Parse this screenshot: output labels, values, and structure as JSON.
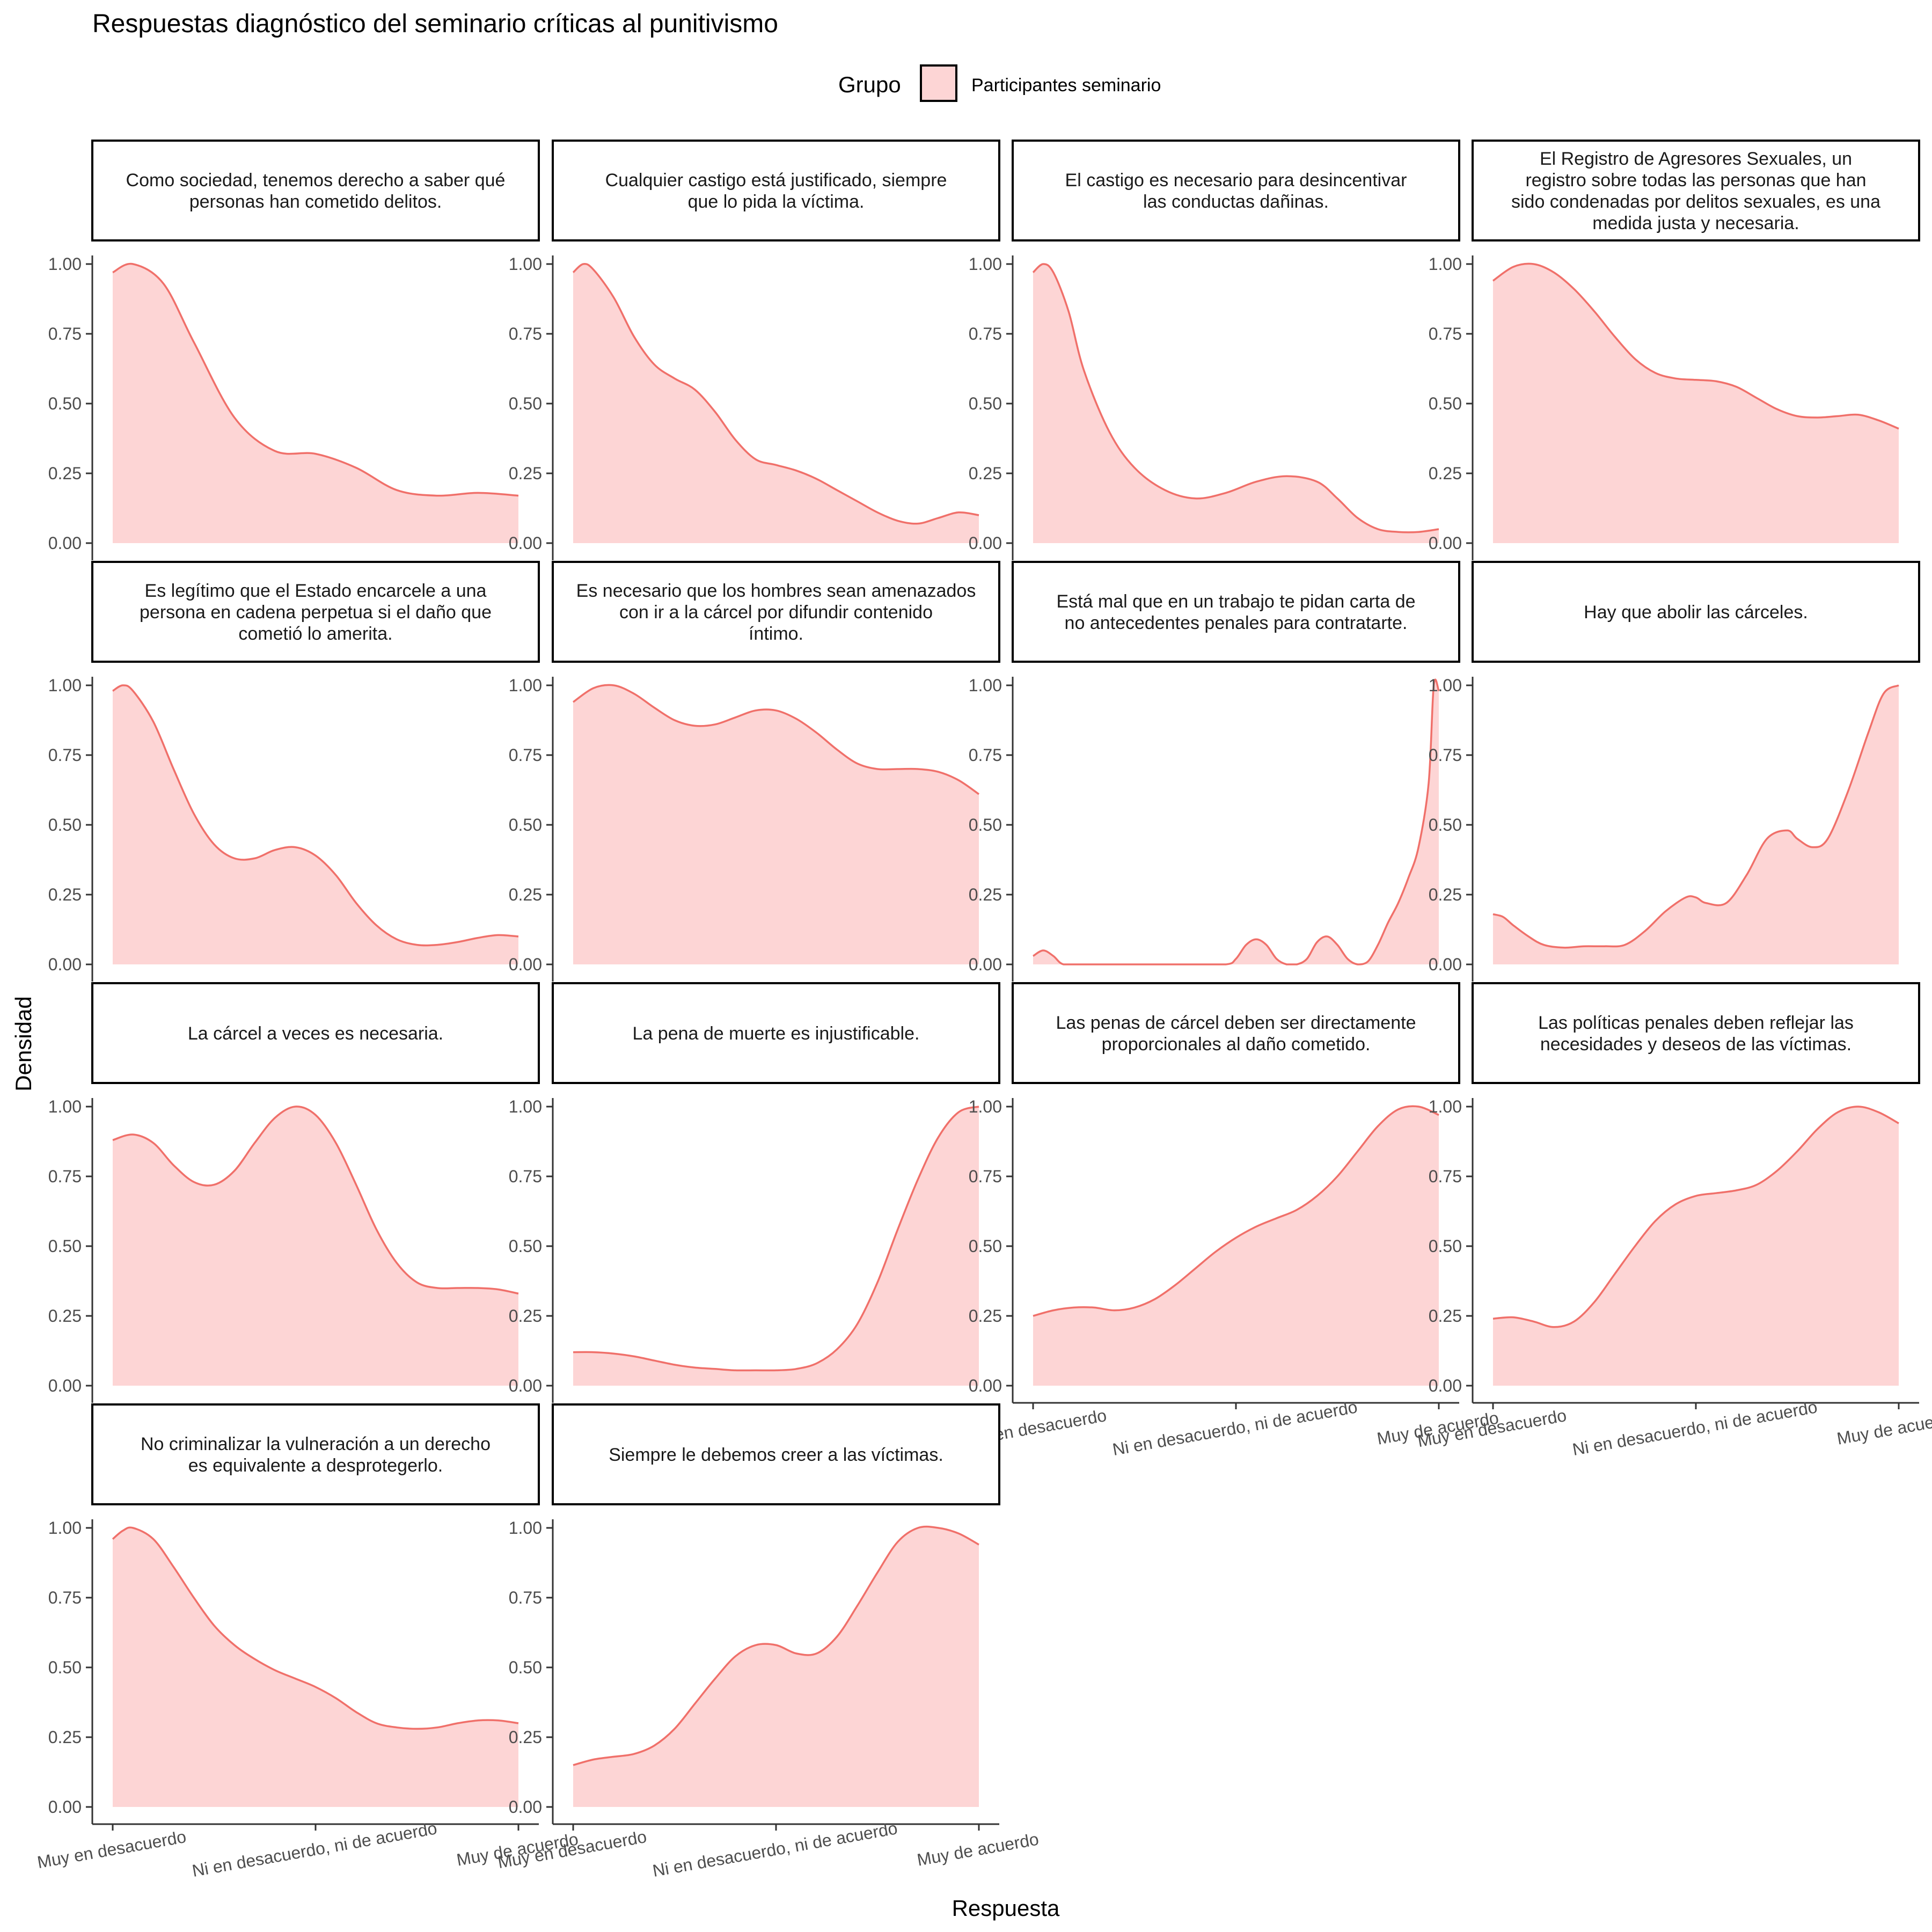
{
  "chart_data": {
    "type": "area",
    "title": "Respuestas diagnóstico del seminario críticas al punitivismo",
    "xlabel": "Respuesta",
    "ylabel": "Densidad",
    "legend": {
      "title": "Grupo",
      "position": "top",
      "entries": [
        {
          "name": "Participantes seminario",
          "fill": "#FDD5D5",
          "stroke": "#F0706A"
        }
      ]
    },
    "colors": {
      "fill": "#FDD5D5",
      "stroke": "#F0706A",
      "axis": "#333333",
      "tick_text": "#4D4D4D"
    },
    "ylim": [
      0,
      1
    ],
    "xlim": [
      1,
      5
    ],
    "y_ticks": [
      {
        "value": 0,
        "label": "0.00"
      },
      {
        "value": 0.25,
        "label": "0.25"
      },
      {
        "value": 0.5,
        "label": "0.50"
      },
      {
        "value": 0.75,
        "label": "0.75"
      },
      {
        "value": 1,
        "label": "1.00"
      }
    ],
    "x_ticks": [
      {
        "value": 1,
        "label": "Muy en desacuerdo"
      },
      {
        "value": 3,
        "label": "Ni en desacuerdo, ni de acuerdo"
      },
      {
        "value": 5,
        "label": "Muy de acuerdo"
      }
    ],
    "facets": [
      {
        "title": [
          "Como sociedad, tenemos derecho a saber qué",
          "personas han cometido delitos."
        ],
        "x": [
          1,
          1.2,
          1.5,
          1.8,
          2.2,
          2.6,
          3,
          3.4,
          3.8,
          4.2,
          4.6,
          5
        ],
        "y": [
          0.97,
          1.0,
          0.93,
          0.72,
          0.45,
          0.33,
          0.32,
          0.27,
          0.19,
          0.17,
          0.18,
          0.17
        ]
      },
      {
        "title": [
          "Cualquier castigo está justificado, siempre",
          "que lo pida la víctima."
        ],
        "x": [
          1,
          1.1,
          1.2,
          1.4,
          1.6,
          1.8,
          2.0,
          2.2,
          2.4,
          2.6,
          2.8,
          3.0,
          3.2,
          3.4,
          3.6,
          3.8,
          4.0,
          4.2,
          4.4,
          4.6,
          4.8,
          5
        ],
        "y": [
          0.97,
          1.0,
          0.98,
          0.88,
          0.74,
          0.64,
          0.59,
          0.55,
          0.47,
          0.37,
          0.3,
          0.28,
          0.26,
          0.23,
          0.19,
          0.15,
          0.11,
          0.08,
          0.07,
          0.09,
          0.11,
          0.1
        ]
      },
      {
        "title": [
          "El castigo es necesario para desincentivar",
          "las conductas dañinas."
        ],
        "x": [
          1,
          1.1,
          1.2,
          1.35,
          1.5,
          1.75,
          2,
          2.3,
          2.6,
          2.9,
          3.2,
          3.5,
          3.8,
          4.0,
          4.2,
          4.4,
          4.6,
          4.8,
          5
        ],
        "y": [
          0.97,
          1.0,
          0.97,
          0.83,
          0.62,
          0.4,
          0.27,
          0.19,
          0.16,
          0.18,
          0.22,
          0.24,
          0.22,
          0.16,
          0.09,
          0.05,
          0.04,
          0.04,
          0.05
        ]
      },
      {
        "title": [
          "El Registro de Agresores Sexuales, un",
          "registro sobre todas las personas que han",
          "sido condenadas por delitos sexuales, es una",
          "medida justa y necesaria."
        ],
        "x": [
          1,
          1.2,
          1.4,
          1.6,
          1.8,
          2.0,
          2.2,
          2.4,
          2.6,
          2.8,
          3.0,
          3.2,
          3.4,
          3.6,
          3.8,
          4.0,
          4.2,
          4.4,
          4.6,
          4.8,
          5
        ],
        "y": [
          0.94,
          0.99,
          1.0,
          0.97,
          0.91,
          0.83,
          0.74,
          0.66,
          0.61,
          0.59,
          0.585,
          0.58,
          0.56,
          0.52,
          0.48,
          0.455,
          0.45,
          0.455,
          0.46,
          0.44,
          0.41
        ]
      },
      {
        "title": [
          "Es legítimo que el Estado encarcele a una",
          "persona en cadena perpetua si el daño que",
          "cometió lo amerita."
        ],
        "x": [
          1,
          1.1,
          1.2,
          1.4,
          1.6,
          1.8,
          2.0,
          2.2,
          2.4,
          2.6,
          2.8,
          3.0,
          3.2,
          3.4,
          3.6,
          3.8,
          4.0,
          4.2,
          4.4,
          4.6,
          4.8,
          5
        ],
        "y": [
          0.98,
          1.0,
          0.98,
          0.87,
          0.7,
          0.54,
          0.43,
          0.38,
          0.38,
          0.41,
          0.42,
          0.39,
          0.32,
          0.22,
          0.14,
          0.09,
          0.07,
          0.07,
          0.08,
          0.095,
          0.105,
          0.1
        ]
      },
      {
        "title": [
          "Es necesario que los hombres sean amenazados",
          "con ir a la cárcel por difundir contenido",
          "íntimo."
        ],
        "x": [
          1,
          1.2,
          1.4,
          1.6,
          1.8,
          2.0,
          2.2,
          2.4,
          2.6,
          2.8,
          3.0,
          3.2,
          3.4,
          3.6,
          3.8,
          4.0,
          4.2,
          4.4,
          4.6,
          4.8,
          5
        ],
        "y": [
          0.94,
          0.99,
          1.0,
          0.97,
          0.92,
          0.875,
          0.855,
          0.86,
          0.885,
          0.91,
          0.91,
          0.88,
          0.83,
          0.77,
          0.72,
          0.7,
          0.7,
          0.7,
          0.69,
          0.66,
          0.61
        ]
      },
      {
        "title": [
          "Está mal que en un trabajo te pidan carta de",
          "no antecedentes penales para contratarte."
        ],
        "x": [
          1,
          1.1,
          1.2,
          1.3,
          1.5,
          2.0,
          2.5,
          2.9,
          3.0,
          3.1,
          3.2,
          3.3,
          3.4,
          3.5,
          3.6,
          3.7,
          3.8,
          3.9,
          4.0,
          4.1,
          4.2,
          4.3,
          4.4,
          4.5,
          4.6,
          4.7,
          4.8,
          4.9,
          4.95,
          5
        ],
        "y": [
          0.03,
          0.05,
          0.03,
          0.0,
          0.0,
          0.0,
          0.0,
          0.0,
          0.02,
          0.07,
          0.09,
          0.07,
          0.02,
          0.0,
          0.0,
          0.02,
          0.08,
          0.1,
          0.07,
          0.02,
          0.0,
          0.01,
          0.07,
          0.15,
          0.22,
          0.31,
          0.42,
          0.65,
          1.0,
          0.98
        ]
      },
      {
        "title": [
          "Hay que abolir las cárceles."
        ],
        "x": [
          1,
          1.1,
          1.2,
          1.35,
          1.5,
          1.7,
          1.9,
          2.1,
          2.3,
          2.5,
          2.7,
          2.9,
          3.0,
          3.1,
          3.3,
          3.5,
          3.7,
          3.9,
          4.0,
          4.15,
          4.3,
          4.5,
          4.7,
          4.85,
          5
        ],
        "y": [
          0.18,
          0.17,
          0.14,
          0.1,
          0.07,
          0.06,
          0.065,
          0.065,
          0.07,
          0.12,
          0.19,
          0.24,
          0.24,
          0.22,
          0.22,
          0.32,
          0.45,
          0.48,
          0.45,
          0.42,
          0.45,
          0.62,
          0.83,
          0.97,
          1.0
        ]
      },
      {
        "title": [
          "La cárcel a veces es necesaria."
        ],
        "x": [
          1,
          1.2,
          1.4,
          1.6,
          1.8,
          2.0,
          2.2,
          2.4,
          2.6,
          2.8,
          3.0,
          3.2,
          3.4,
          3.6,
          3.8,
          4.0,
          4.2,
          4.4,
          4.6,
          4.8,
          5
        ],
        "y": [
          0.88,
          0.9,
          0.87,
          0.79,
          0.73,
          0.72,
          0.77,
          0.87,
          0.96,
          1.0,
          0.97,
          0.87,
          0.72,
          0.56,
          0.44,
          0.37,
          0.35,
          0.35,
          0.35,
          0.345,
          0.33
        ]
      },
      {
        "title": [
          "La pena de muerte es injustificable."
        ],
        "x": [
          1,
          1.2,
          1.4,
          1.6,
          1.8,
          2.0,
          2.2,
          2.4,
          2.6,
          2.8,
          3.0,
          3.2,
          3.4,
          3.6,
          3.8,
          4.0,
          4.2,
          4.4,
          4.6,
          4.8,
          5
        ],
        "y": [
          0.12,
          0.12,
          0.115,
          0.105,
          0.09,
          0.075,
          0.065,
          0.06,
          0.055,
          0.055,
          0.055,
          0.06,
          0.08,
          0.13,
          0.22,
          0.37,
          0.56,
          0.74,
          0.89,
          0.98,
          1.0
        ]
      },
      {
        "title": [
          "Las penas de cárcel deben ser directamente",
          "proporcionales al daño cometido."
        ],
        "x": [
          1,
          1.2,
          1.4,
          1.6,
          1.8,
          2.0,
          2.2,
          2.4,
          2.6,
          2.8,
          3.0,
          3.2,
          3.4,
          3.6,
          3.8,
          4.0,
          4.2,
          4.4,
          4.6,
          4.8,
          5
        ],
        "y": [
          0.25,
          0.27,
          0.28,
          0.28,
          0.27,
          0.28,
          0.31,
          0.36,
          0.42,
          0.48,
          0.53,
          0.57,
          0.6,
          0.63,
          0.68,
          0.75,
          0.84,
          0.93,
          0.99,
          1.0,
          0.97
        ]
      },
      {
        "title": [
          "Las políticas penales deben reflejar las",
          "necesidades y deseos de las víctimas."
        ],
        "x": [
          1,
          1.2,
          1.4,
          1.6,
          1.8,
          2.0,
          2.2,
          2.4,
          2.6,
          2.8,
          3.0,
          3.2,
          3.4,
          3.6,
          3.8,
          4.0,
          4.2,
          4.4,
          4.6,
          4.8,
          5
        ],
        "y": [
          0.24,
          0.245,
          0.23,
          0.21,
          0.23,
          0.3,
          0.4,
          0.5,
          0.59,
          0.65,
          0.68,
          0.69,
          0.7,
          0.72,
          0.77,
          0.84,
          0.92,
          0.98,
          1.0,
          0.98,
          0.94
        ]
      },
      {
        "title": [
          "No criminalizar la vulneración a un derecho",
          "es equivalente a desprotegerlo."
        ],
        "x": [
          1,
          1.1,
          1.2,
          1.4,
          1.6,
          1.8,
          2.0,
          2.2,
          2.4,
          2.6,
          2.8,
          3.0,
          3.2,
          3.4,
          3.6,
          3.8,
          4.0,
          4.2,
          4.4,
          4.6,
          4.8,
          5
        ],
        "y": [
          0.96,
          0.99,
          1.0,
          0.96,
          0.86,
          0.75,
          0.65,
          0.58,
          0.53,
          0.49,
          0.46,
          0.43,
          0.39,
          0.34,
          0.3,
          0.285,
          0.28,
          0.285,
          0.3,
          0.31,
          0.31,
          0.3
        ]
      },
      {
        "title": [
          "Siempre le debemos creer a las víctimas."
        ],
        "x": [
          1,
          1.2,
          1.4,
          1.6,
          1.8,
          2.0,
          2.2,
          2.4,
          2.6,
          2.8,
          3.0,
          3.2,
          3.4,
          3.6,
          3.8,
          4.0,
          4.2,
          4.4,
          4.6,
          4.8,
          5
        ],
        "y": [
          0.15,
          0.17,
          0.18,
          0.19,
          0.22,
          0.28,
          0.37,
          0.46,
          0.54,
          0.58,
          0.58,
          0.55,
          0.55,
          0.61,
          0.72,
          0.84,
          0.95,
          1.0,
          1.0,
          0.98,
          0.94
        ]
      }
    ]
  }
}
